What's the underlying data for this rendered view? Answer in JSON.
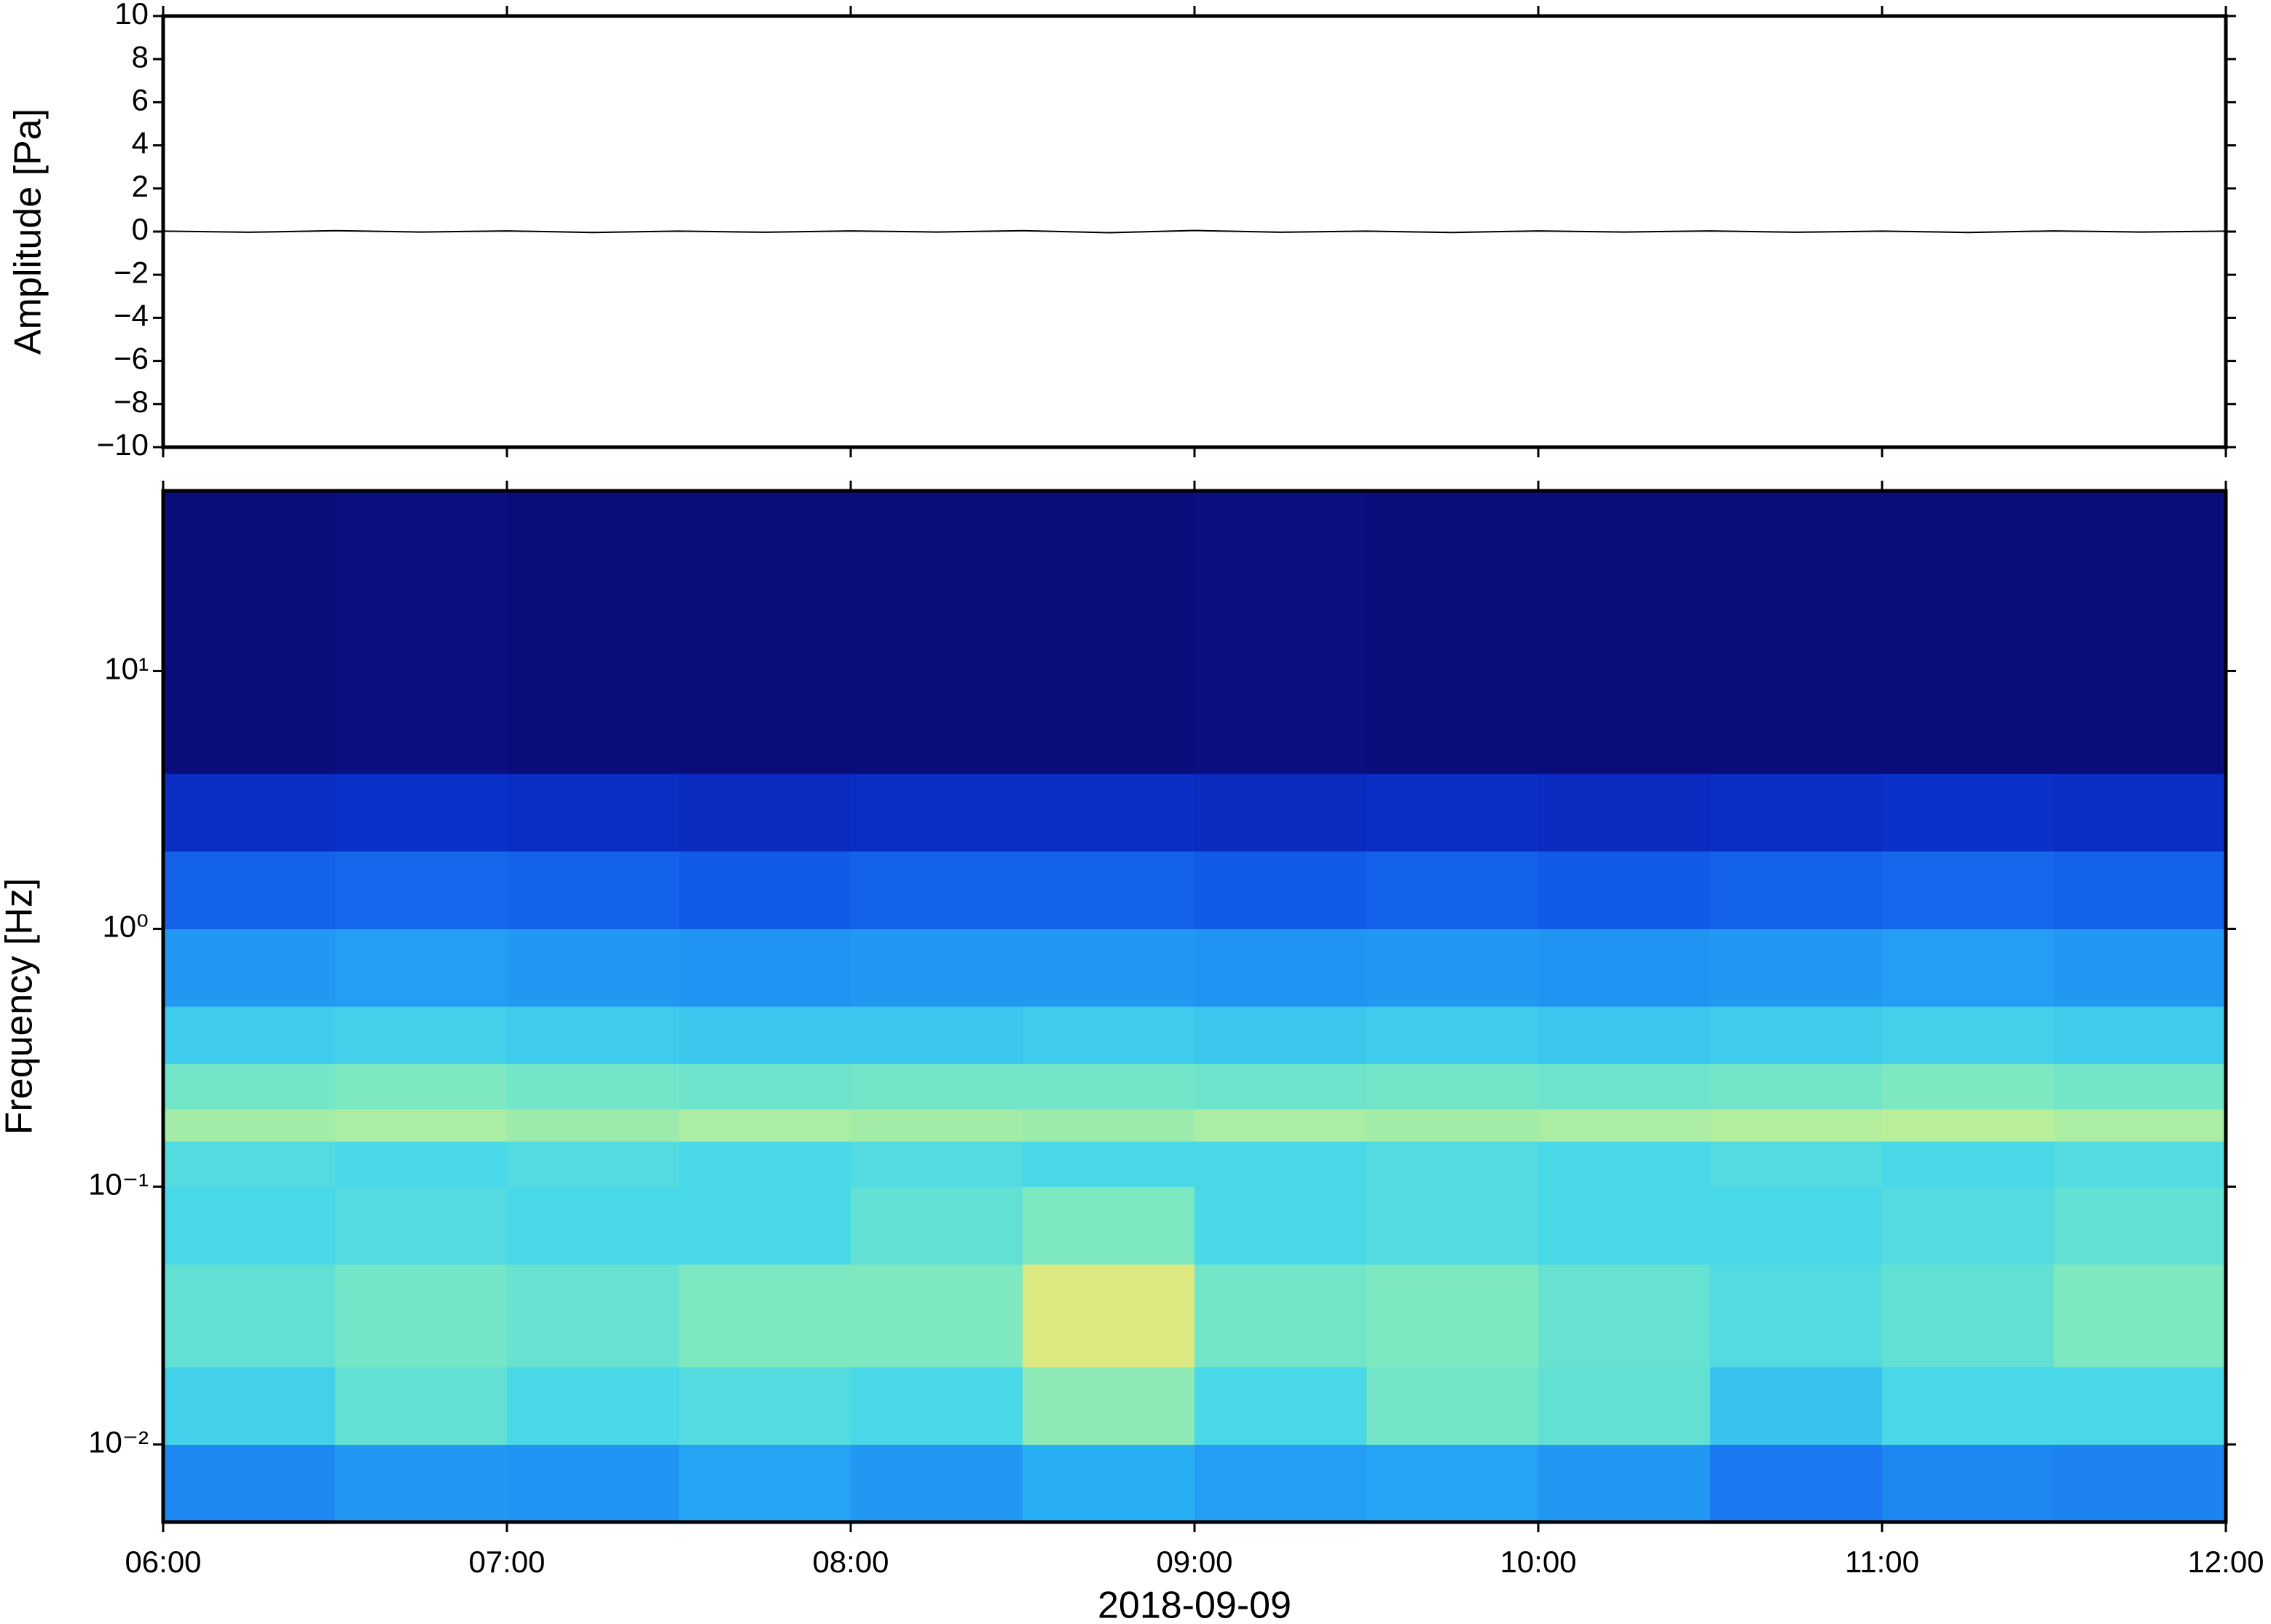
{
  "chart_data": [
    {
      "type": "line",
      "ylabel": "Amplitude [Pa]",
      "color": "#000000",
      "xlim": [
        6,
        12
      ],
      "xticks": [
        6,
        7,
        8,
        9,
        10,
        11,
        12
      ],
      "ylim": [
        -10,
        10
      ],
      "yticks": [
        {
          "value": -10,
          "label": "−10"
        },
        {
          "value": -8,
          "label": "−8"
        },
        {
          "value": -6,
          "label": "−6"
        },
        {
          "value": -4,
          "label": "−4"
        },
        {
          "value": -2,
          "label": "−2"
        },
        0,
        2,
        4,
        6,
        8,
        10
      ],
      "x": [
        6,
        6.25,
        6.5,
        6.75,
        7,
        7.25,
        7.5,
        7.75,
        8,
        8.25,
        8.5,
        8.75,
        9,
        9.25,
        9.5,
        9.75,
        10,
        10.25,
        10.5,
        10.75,
        11,
        11.25,
        11.5,
        11.75,
        12
      ],
      "values": [
        0.02,
        -0.03,
        0.04,
        -0.02,
        0.03,
        -0.04,
        0.02,
        -0.03,
        0.03,
        -0.02,
        0.04,
        -0.05,
        0.05,
        -0.03,
        0.02,
        -0.04,
        0.03,
        -0.02,
        0.03,
        -0.03,
        0.02,
        -0.04,
        0.03,
        -0.02,
        0.02
      ]
    },
    {
      "type": "heatmap",
      "ylabel": "Frequency [Hz]",
      "xlabel": "2018-09-09",
      "log_y": true,
      "xlim": [
        6,
        12
      ],
      "xticks": [
        {
          "value": 6,
          "label": "06:00"
        },
        {
          "value": 7,
          "label": "07:00"
        },
        {
          "value": 8,
          "label": "08:00"
        },
        {
          "value": 9,
          "label": "09:00"
        },
        {
          "value": 10,
          "label": "10:00"
        },
        {
          "value": 11,
          "label": "11:00"
        },
        {
          "value": 12,
          "label": "12:00"
        }
      ],
      "ylim": [
        0.005,
        50
      ],
      "yticks": [
        {
          "value": 0.01,
          "label": "10⁻²"
        },
        {
          "value": 0.1,
          "label": "10⁻¹"
        },
        {
          "value": 1,
          "label": "10⁰"
        },
        {
          "value": 10,
          "label": "10¹"
        }
      ],
      "colormap": [
        "#0b0870",
        "#0a1ea8",
        "#0a3ee0",
        "#1a78f0",
        "#28aef5",
        "#48d8e8",
        "#7ee8c0",
        "#c8f090",
        "#f0e070",
        "#f8b860",
        "#f08040"
      ],
      "x_edges": [
        6,
        6.5,
        7,
        7.5,
        8,
        8.5,
        9,
        9.5,
        10,
        10.5,
        11,
        11.5,
        12
      ],
      "y_edges": [
        0.005,
        0.01,
        0.02,
        0.05,
        0.1,
        0.15,
        0.2,
        0.3,
        0.5,
        1,
        2,
        4,
        50
      ],
      "z": [
        [
          0.33,
          0.36,
          0.35,
          0.38,
          0.36,
          0.4,
          0.37,
          0.38,
          0.36,
          0.3,
          0.33,
          0.32
        ],
        [
          0.48,
          0.55,
          0.5,
          0.52,
          0.5,
          0.62,
          0.5,
          0.58,
          0.55,
          0.45,
          0.5,
          0.5
        ],
        [
          0.55,
          0.58,
          0.56,
          0.6,
          0.6,
          0.75,
          0.58,
          0.6,
          0.56,
          0.52,
          0.55,
          0.6
        ],
        [
          0.5,
          0.52,
          0.5,
          0.5,
          0.55,
          0.6,
          0.5,
          0.52,
          0.5,
          0.5,
          0.52,
          0.55
        ],
        [
          0.52,
          0.5,
          0.52,
          0.5,
          0.52,
          0.5,
          0.5,
          0.52,
          0.5,
          0.52,
          0.5,
          0.52
        ],
        [
          0.65,
          0.66,
          0.64,
          0.66,
          0.65,
          0.64,
          0.66,
          0.65,
          0.66,
          0.67,
          0.68,
          0.66
        ],
        [
          0.58,
          0.6,
          0.58,
          0.57,
          0.58,
          0.58,
          0.57,
          0.58,
          0.57,
          0.58,
          0.6,
          0.58
        ],
        [
          0.47,
          0.48,
          0.47,
          0.46,
          0.46,
          0.47,
          0.46,
          0.47,
          0.46,
          0.47,
          0.48,
          0.47
        ],
        [
          0.36,
          0.37,
          0.36,
          0.35,
          0.36,
          0.36,
          0.35,
          0.36,
          0.35,
          0.36,
          0.37,
          0.36
        ],
        [
          0.26,
          0.27,
          0.26,
          0.25,
          0.26,
          0.26,
          0.25,
          0.26,
          0.25,
          0.26,
          0.27,
          0.26
        ],
        [
          0.15,
          0.16,
          0.15,
          0.14,
          0.15,
          0.15,
          0.14,
          0.15,
          0.14,
          0.15,
          0.16,
          0.15
        ],
        [
          0.02,
          0.03,
          0.02,
          0.02,
          0.02,
          0.02,
          0.03,
          0.02,
          0.02,
          0.02,
          0.02,
          0.02
        ]
      ]
    }
  ]
}
